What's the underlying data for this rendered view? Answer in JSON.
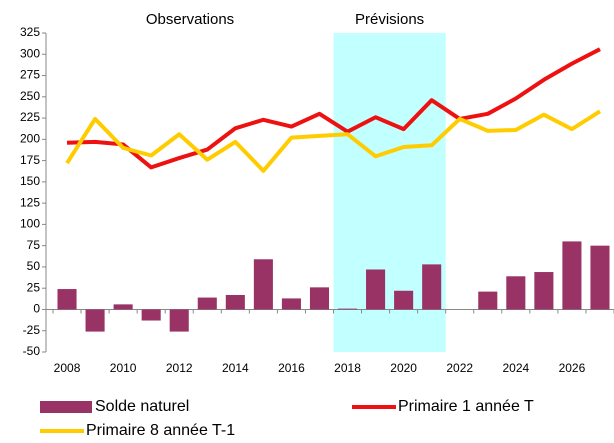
{
  "chart_data": {
    "type": "combo",
    "annotations": [
      {
        "text": "Observations",
        "color": "#000000"
      },
      {
        "text": "Prévisions",
        "color": "#0000cc"
      }
    ],
    "categories": [
      "2008",
      null,
      "2010",
      null,
      "2012",
      null,
      "2014",
      null,
      "2016",
      null,
      "2018",
      null,
      "2020",
      null,
      "2022",
      null,
      "2024",
      null,
      "2026",
      null
    ],
    "series": [
      {
        "name": "Solde naturel",
        "type": "bar",
        "color": "#993366",
        "values": [
          24,
          -26,
          6,
          -13,
          -26,
          14,
          17,
          59,
          13,
          26,
          1,
          47,
          22,
          53,
          null,
          21,
          39,
          44,
          80,
          75
        ]
      },
      {
        "name": "Primaire 1 année T",
        "type": "line",
        "color": "#ee1111",
        "values": [
          196,
          197,
          194,
          167,
          178,
          188,
          213,
          223,
          215,
          230,
          209,
          226,
          212,
          246,
          224,
          230,
          248,
          270,
          289,
          306
        ]
      },
      {
        "name": "Primaire 8 année T-1",
        "type": "line",
        "color": "#ffcc00",
        "values": [
          172,
          224,
          190,
          181,
          206,
          176,
          197,
          163,
          202,
          204,
          206,
          180,
          191,
          193,
          224,
          210,
          211,
          229,
          212,
          233
        ]
      }
    ],
    "ylim": [
      -50,
      325
    ],
    "yticks": [
      -50,
      -25,
      0,
      25,
      50,
      75,
      100,
      125,
      150,
      175,
      200,
      225,
      250,
      275,
      300,
      325
    ],
    "grid": false
  }
}
